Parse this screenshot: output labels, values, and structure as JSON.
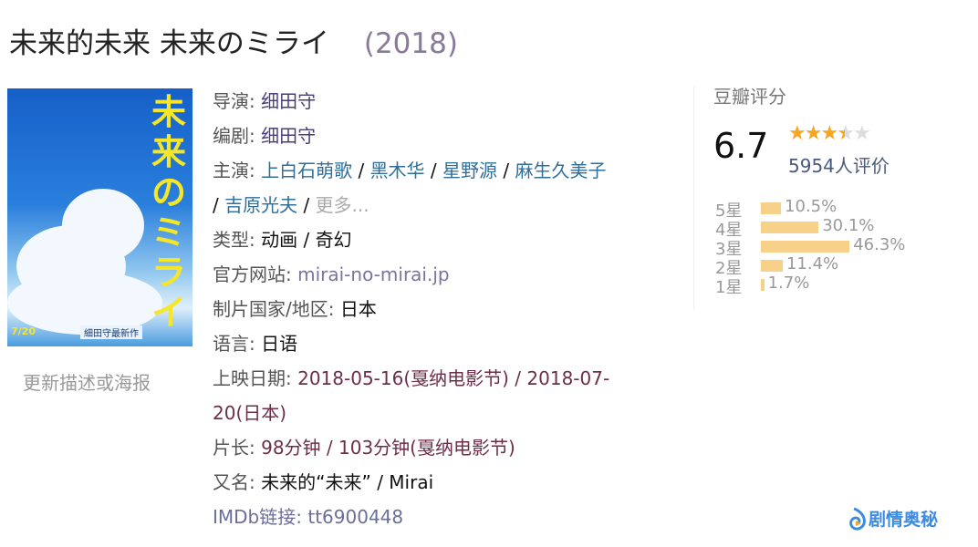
{
  "title": {
    "name": "未来的未来 未来のミライ",
    "year": "(2018)"
  },
  "poster": {
    "title_text": "未来のミライ",
    "date": "7/20",
    "credit": "細田守最新作"
  },
  "poster_caption": "更新描述或海报",
  "info": {
    "director": {
      "label": "导演:",
      "value": "细田守"
    },
    "writer": {
      "label": "编剧:",
      "value": "细田守"
    },
    "cast": {
      "label": "主演:",
      "actors": [
        "上白石萌歌",
        "黑木华",
        "星野源",
        "麻生久美子",
        "吉原光夫"
      ],
      "more": "更多..."
    },
    "genre": {
      "label": "类型:",
      "values": [
        "动画",
        "奇幻"
      ]
    },
    "website": {
      "label": "官方网站:",
      "value": "mirai-no-mirai.jp"
    },
    "country": {
      "label": "制片国家/地区:",
      "value": "日本"
    },
    "language": {
      "label": "语言:",
      "value": "日语"
    },
    "release": {
      "label": "上映日期:",
      "line1": "2018-05-16(戛纳电影节) / 2018-07-",
      "line2": "20(日本)"
    },
    "runtime": {
      "label": "片长:",
      "value": "98分钟 / 103分钟(戛纳电影节)"
    },
    "aka": {
      "label": "又名:",
      "value": "未来的“未来” / Mirai"
    },
    "imdb": {
      "label": "IMDb链接:",
      "value": "tt6900448"
    }
  },
  "rating": {
    "title": "豆瓣评分",
    "score": "6.7",
    "stars": 3.5,
    "votes": "5954人评价",
    "distribution": [
      {
        "label": "5星",
        "pct": "10.5%",
        "value": 10.5
      },
      {
        "label": "4星",
        "pct": "30.1%",
        "value": 30.1
      },
      {
        "label": "3星",
        "pct": "46.3%",
        "value": 46.3
      },
      {
        "label": "2星",
        "pct": "11.4%",
        "value": 11.4
      },
      {
        "label": "1星",
        "pct": "1.7%",
        "value": 1.7
      }
    ],
    "bar_color": "#f7d08a",
    "star_color": "#f5a623"
  },
  "watermark": "剧情奥秘"
}
